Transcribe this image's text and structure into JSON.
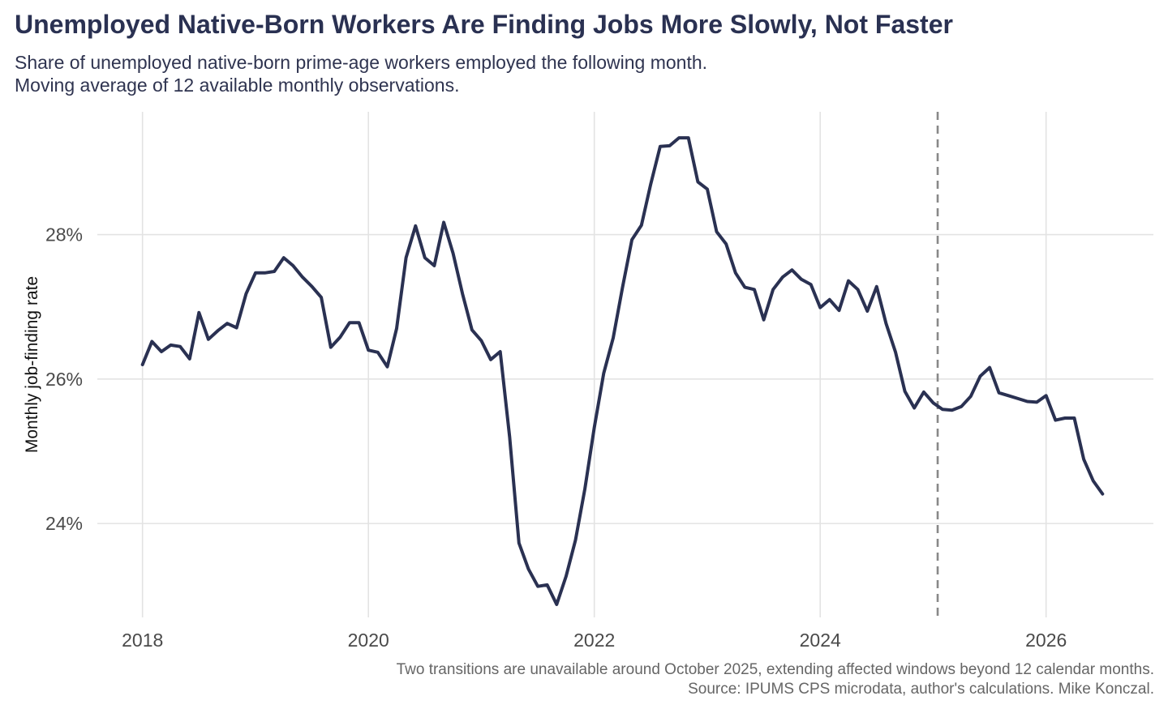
{
  "title": "Unemployed Native-Born Workers Are Finding Jobs More Slowly, Not Faster",
  "subtitle_line1": "Share of unemployed native-born prime-age workers employed the following month.",
  "subtitle_line2": "Moving average of 12 available monthly observations.",
  "caption_line1": "Two transitions are unavailable around October 2025, extending affected windows beyond 12 calendar months.",
  "caption_line2": "Source: IPUMS CPS microdata, author's calculations. Mike Konczal.",
  "chart_data": {
    "type": "line",
    "title": "Unemployed Native-Born Workers Are Finding Jobs More Slowly, Not Faster",
    "xlabel": "",
    "ylabel": "Monthly job-finding rate",
    "xlim": [
      2017.6,
      2026.95
    ],
    "ylim": [
      22.7,
      29.7
    ],
    "x_ticks": [
      2018,
      2020,
      2022,
      2024,
      2026
    ],
    "y_ticks": [
      24,
      26,
      28
    ],
    "y_tick_format": "percent",
    "grid": true,
    "line_color": "#2a3152",
    "annotation": {
      "type": "vertical-dashed-line",
      "x": 2025.04,
      "color": "#888888"
    },
    "series": [
      {
        "x": [
          2018.0,
          2018.083,
          2018.167,
          2018.25,
          2018.333,
          2018.417,
          2018.5,
          2018.583,
          2018.667,
          2018.75,
          2018.833,
          2018.917,
          2019.0,
          2019.083,
          2019.167,
          2019.25,
          2019.333,
          2019.417,
          2019.5,
          2019.583,
          2019.667,
          2019.75,
          2019.833,
          2019.917,
          2020.0,
          2020.083,
          2020.167,
          2020.25,
          2020.333,
          2020.417,
          2020.5,
          2020.583,
          2020.667,
          2020.75,
          2020.833,
          2020.917,
          2021.0,
          2021.083,
          2021.167,
          2021.25,
          2021.333,
          2021.417,
          2021.5,
          2021.583,
          2021.667,
          2021.75,
          2021.833,
          2021.917,
          2022.0,
          2022.083,
          2022.167,
          2022.25,
          2022.333,
          2022.417,
          2022.5,
          2022.583,
          2022.667,
          2022.75,
          2022.833,
          2022.917,
          2023.0,
          2023.083,
          2023.167,
          2023.25,
          2023.333,
          2023.417,
          2023.5,
          2023.583,
          2023.667,
          2023.75,
          2023.833,
          2023.917,
          2024.0,
          2024.083,
          2024.167,
          2024.25,
          2024.333,
          2024.417,
          2024.5,
          2024.583,
          2024.667,
          2024.75,
          2024.833,
          2024.917,
          2025.0,
          2025.083,
          2025.167,
          2025.25,
          2025.333,
          2025.417,
          2025.5,
          2025.583,
          2025.667,
          2025.75,
          2025.833,
          2025.917,
          2026.0,
          2026.083,
          2026.167,
          2026.25,
          2026.333,
          2026.417,
          2026.5
        ],
        "y": [
          26.2,
          26.52,
          26.38,
          26.47,
          26.45,
          26.28,
          26.92,
          26.55,
          26.67,
          26.77,
          26.71,
          27.18,
          27.47,
          27.47,
          27.49,
          27.68,
          27.57,
          27.41,
          27.28,
          27.13,
          26.44,
          26.58,
          26.78,
          26.78,
          26.4,
          26.37,
          26.17,
          26.7,
          27.68,
          28.12,
          27.68,
          27.57,
          28.17,
          27.74,
          27.18,
          26.68,
          26.53,
          26.27,
          26.38,
          25.2,
          23.73,
          23.37,
          23.13,
          23.15,
          22.88,
          23.27,
          23.77,
          24.48,
          25.33,
          26.08,
          26.57,
          27.27,
          27.93,
          28.13,
          28.7,
          29.22,
          29.23,
          29.34,
          29.34,
          28.73,
          28.63,
          28.04,
          27.87,
          27.47,
          27.27,
          27.24,
          26.82,
          27.24,
          27.41,
          27.51,
          27.38,
          27.31,
          26.99,
          27.1,
          26.95,
          27.36,
          27.24,
          26.94,
          27.28,
          26.77,
          26.37,
          25.83,
          25.6,
          25.82,
          25.67,
          25.58,
          25.57,
          25.62,
          25.76,
          26.04,
          26.16,
          25.81,
          25.77,
          25.73,
          25.69,
          25.68,
          25.77,
          25.43,
          25.46,
          25.46,
          24.89,
          24.59,
          24.41
        ]
      }
    ]
  }
}
